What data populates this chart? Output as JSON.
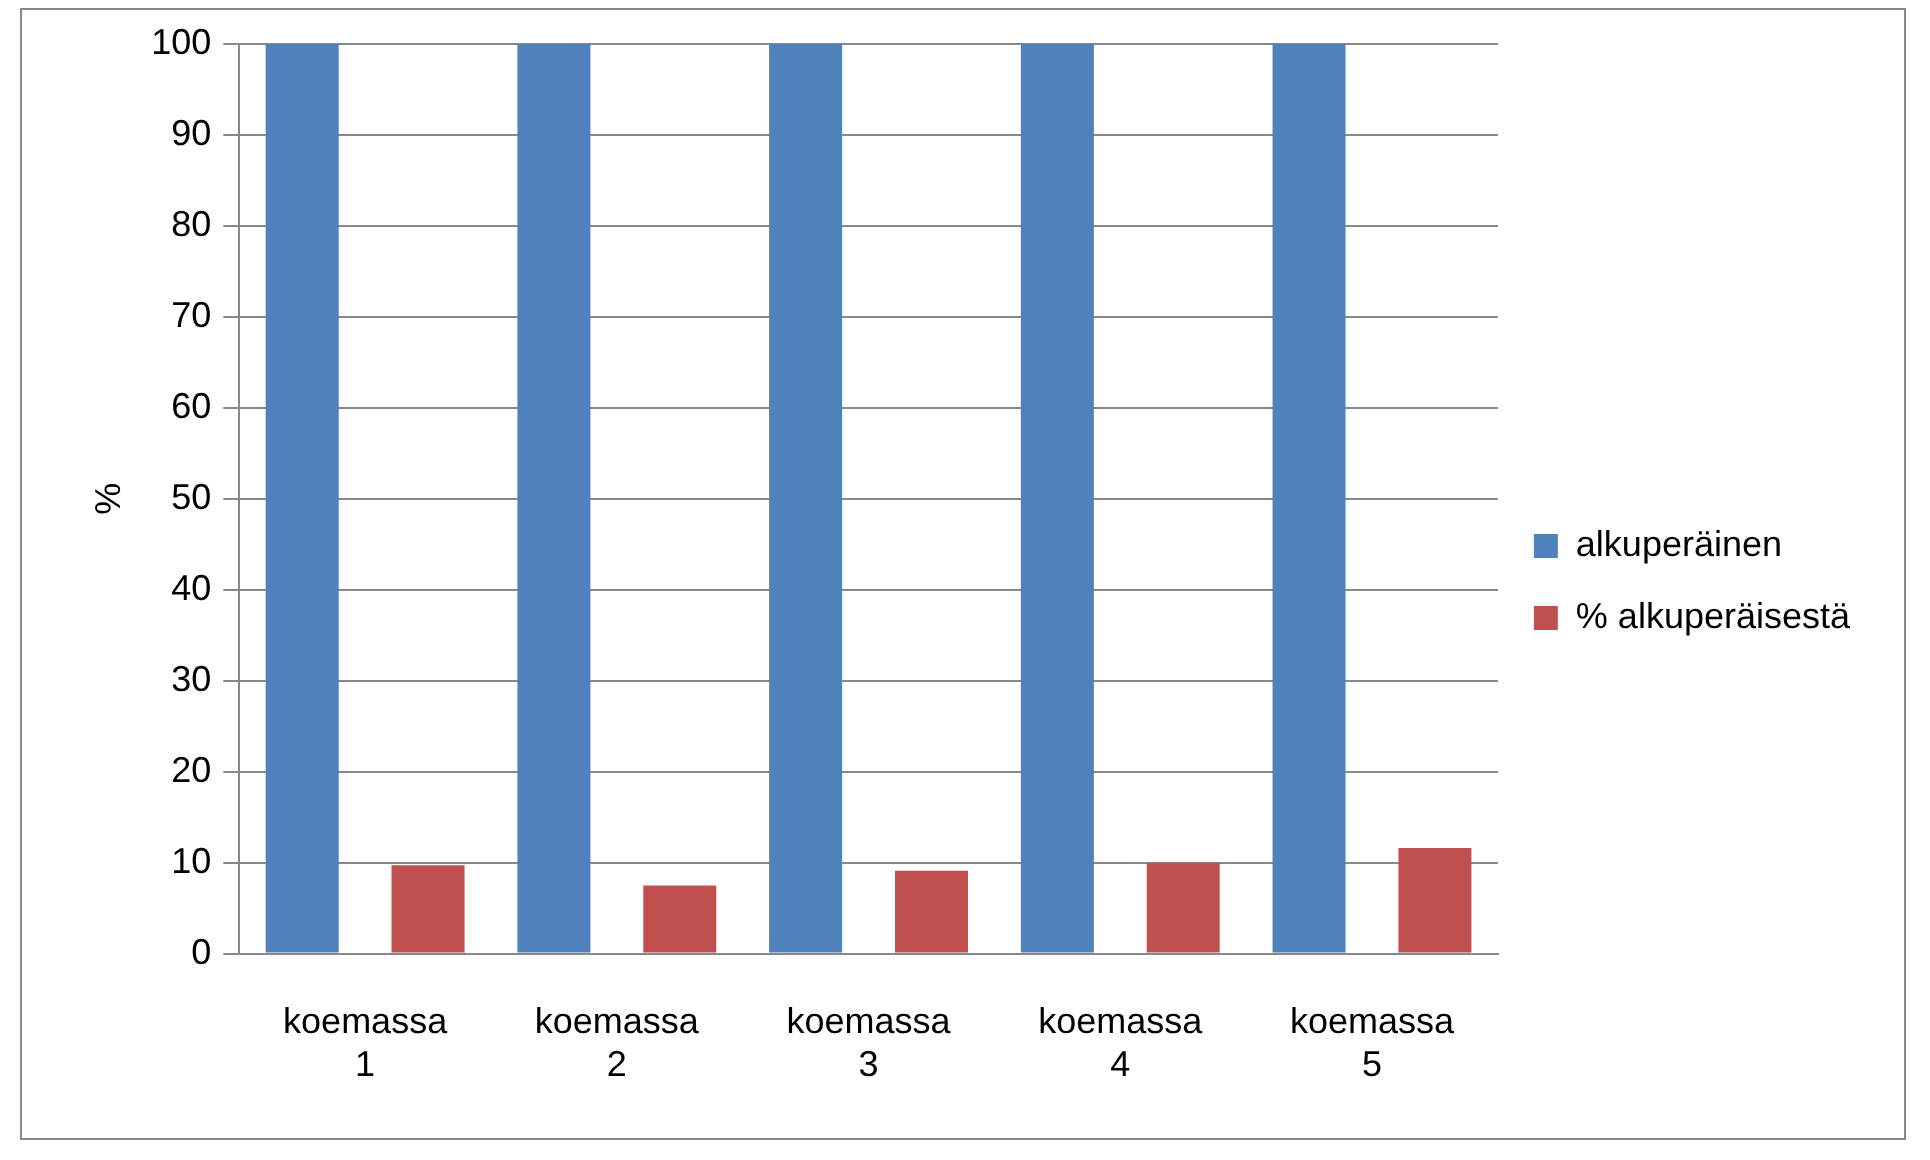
{
  "chart_data": {
    "type": "bar",
    "ylabel": "%",
    "categories": [
      "koemassa 1",
      "koemassa 2",
      "koemassa 3",
      "koemassa 4",
      "koemassa 5"
    ],
    "series": [
      {
        "name": "alkuperäinen",
        "color": "#4f81bd",
        "values": [
          100,
          100,
          100,
          100,
          100
        ]
      },
      {
        "name": "% alkuperäisestä",
        "color": "#c0504d",
        "values": [
          9.7,
          7.5,
          9.1,
          10.0,
          11.6
        ]
      }
    ],
    "ylim": [
      0,
      100
    ],
    "yticks": [
      0,
      10,
      20,
      30,
      40,
      50,
      60,
      70,
      80,
      90,
      100
    ],
    "grid": "y",
    "legend": "right"
  }
}
